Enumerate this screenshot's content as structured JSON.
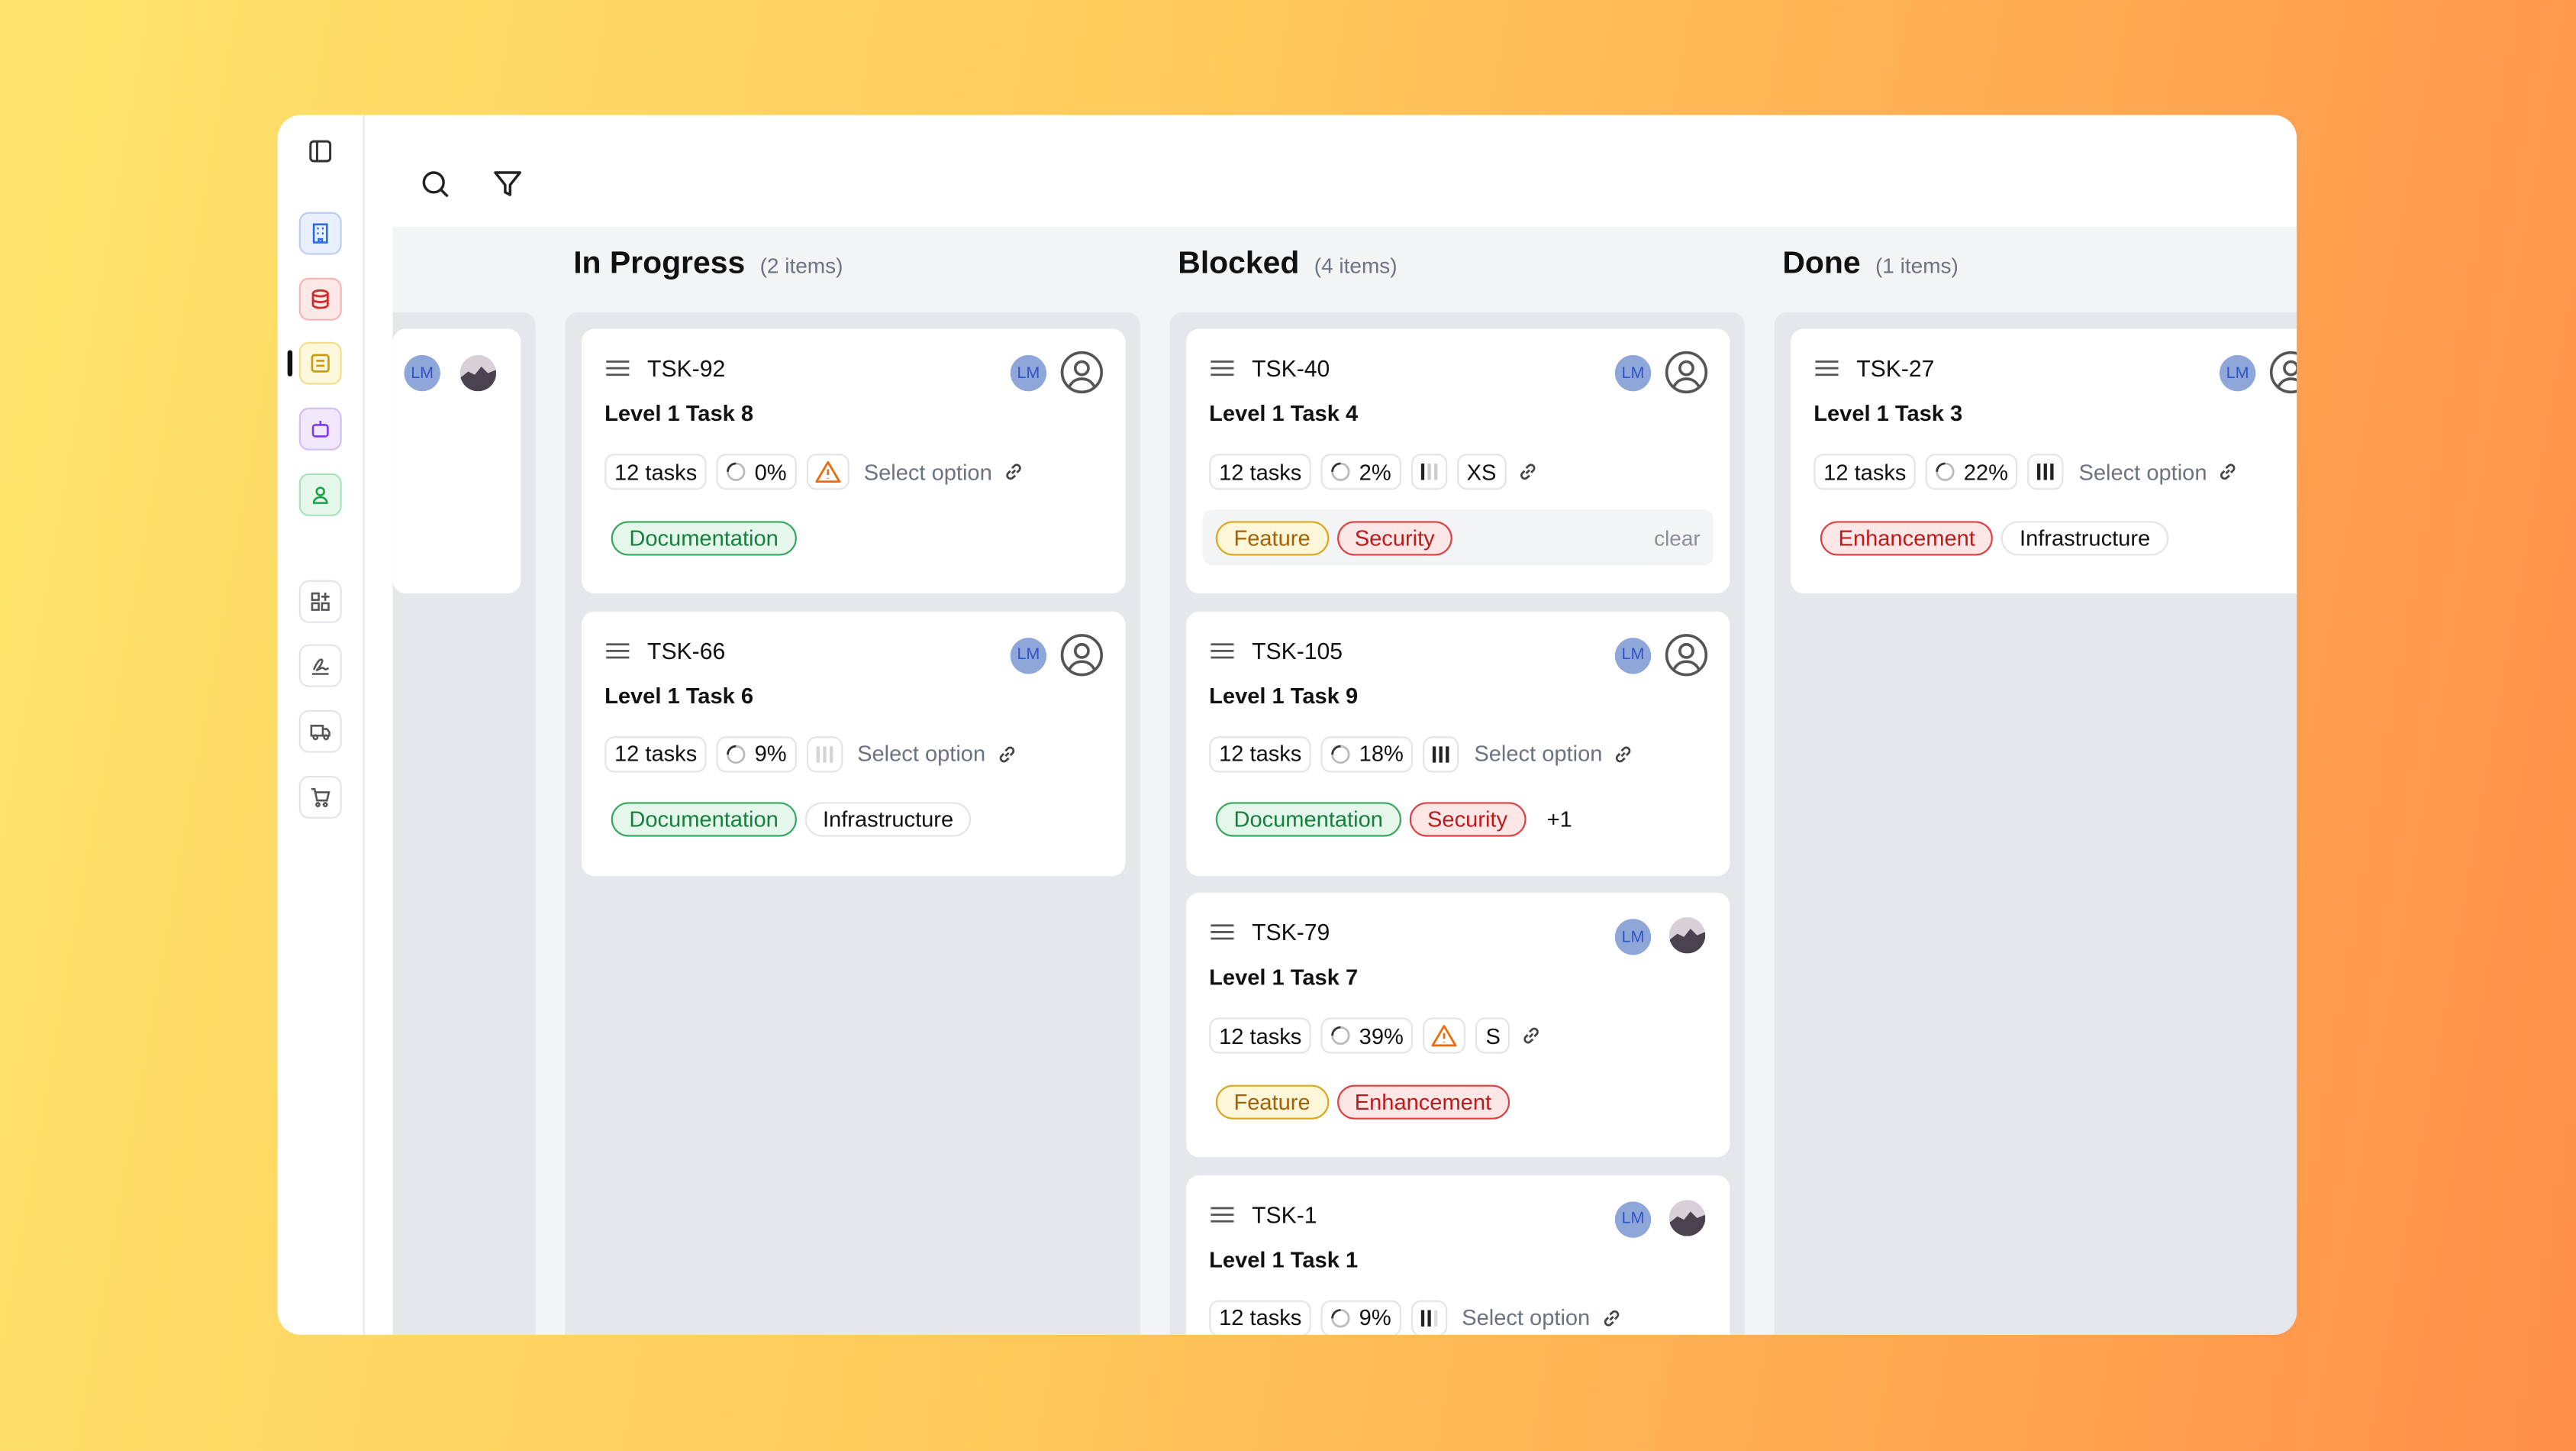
{
  "partial_column": {
    "cards": [
      {
        "avatar": "LM",
        "assignee": "photo"
      }
    ]
  },
  "columns": [
    {
      "title": "In Progress",
      "count": "(2 items)",
      "cards": [
        {
          "id": "TSK-92",
          "title": "Level 1 Task 8",
          "avatar": "LM",
          "assignee": "icon",
          "subtasks": "12 tasks",
          "progress": "0%",
          "priority_icon": "warning",
          "placeholder": "Select option",
          "tags": [
            {
              "label": "Documentation",
              "color": "green"
            }
          ]
        },
        {
          "id": "TSK-66",
          "title": "Level 1 Task 6",
          "avatar": "LM",
          "assignee": "icon",
          "subtasks": "12 tasks",
          "progress": "9%",
          "priority_icon": "bars-faded",
          "placeholder": "Select option",
          "tags": [
            {
              "label": "Documentation",
              "color": "green"
            },
            {
              "label": "Infrastructure",
              "color": "gray"
            }
          ]
        }
      ]
    },
    {
      "title": "Blocked",
      "count": "(4 items)",
      "cards": [
        {
          "id": "TSK-40",
          "title": "Level 1 Task 4",
          "avatar": "LM",
          "assignee": "icon",
          "subtasks": "12 tasks",
          "progress": "2%",
          "priority_icon": "bars-half",
          "size": "XS",
          "tags": [
            {
              "label": "Feature",
              "color": "yellow"
            },
            {
              "label": "Security",
              "color": "red"
            }
          ],
          "clear_label": "clear"
        },
        {
          "id": "TSK-105",
          "title": "Level 1 Task 9",
          "avatar": "LM",
          "assignee": "icon",
          "subtasks": "12 tasks",
          "progress": "18%",
          "priority_icon": "bars",
          "placeholder": "Select option",
          "tags": [
            {
              "label": "Documentation",
              "color": "green"
            },
            {
              "label": "Security",
              "color": "red"
            }
          ],
          "more": "+1"
        },
        {
          "id": "TSK-79",
          "title": "Level 1 Task 7",
          "avatar": "LM",
          "assignee": "photo",
          "subtasks": "12 tasks",
          "progress": "39%",
          "priority_icon": "warning",
          "size": "S",
          "tags": [
            {
              "label": "Feature",
              "color": "yellow"
            },
            {
              "label": "Enhancement",
              "color": "red"
            }
          ]
        },
        {
          "id": "TSK-1",
          "title": "Level 1 Task 1",
          "avatar": "LM",
          "assignee": "photo",
          "subtasks": "12 tasks",
          "progress": "9%",
          "priority_icon": "bars-two",
          "placeholder": "Select option",
          "tags": []
        }
      ]
    },
    {
      "title": "Done",
      "count": "(1 items)",
      "cards": [
        {
          "id": "TSK-27",
          "title": "Level 1 Task 3",
          "avatar": "LM",
          "assignee": "icon",
          "subtasks": "12 tasks",
          "progress": "22%",
          "priority_icon": "bars",
          "placeholder": "Select option",
          "tags": [
            {
              "label": "Enhancement",
              "color": "red"
            },
            {
              "label": "Infrastructure",
              "color": "gray"
            }
          ]
        }
      ]
    }
  ]
}
